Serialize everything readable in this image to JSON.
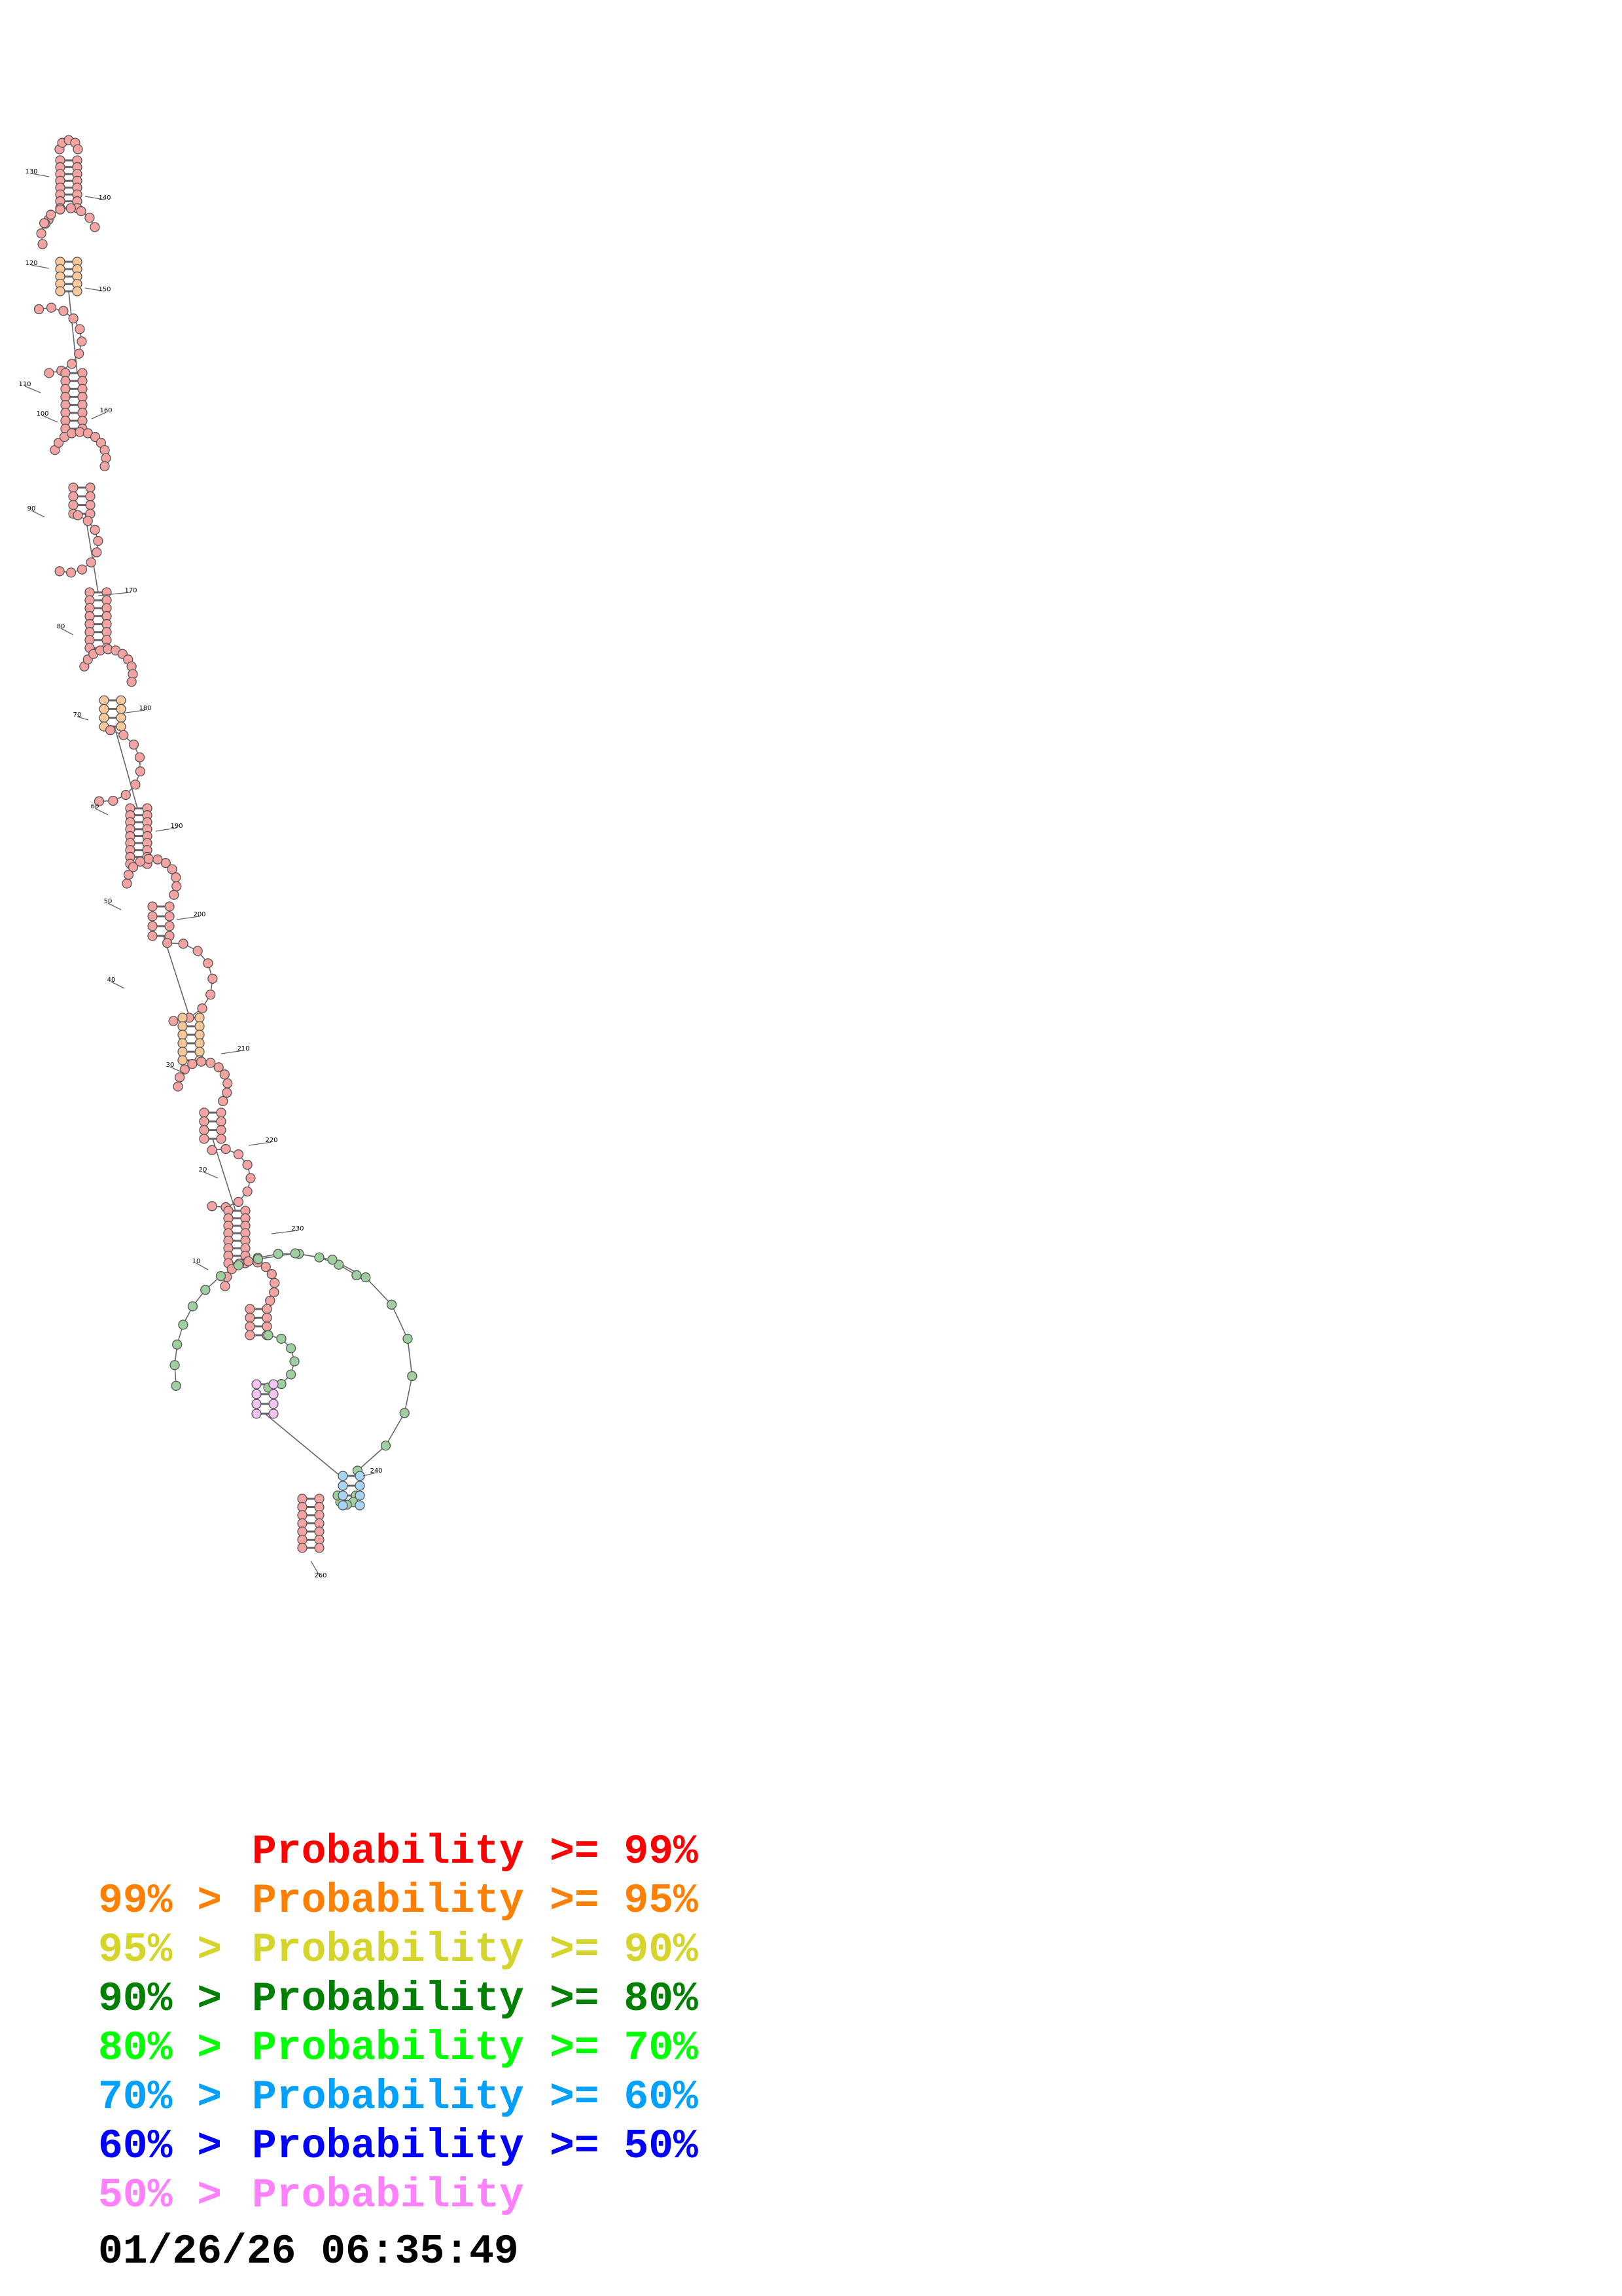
{
  "diagram": {
    "type": "rna-secondary-structure",
    "position_labels": [
      "10",
      "20",
      "30",
      "40",
      "50",
      "60",
      "70",
      "80",
      "90",
      "100",
      "110",
      "120",
      "130",
      "140",
      "150",
      "160",
      "170",
      "180",
      "190",
      "200",
      "210",
      "220",
      "230",
      "240",
      "260"
    ]
  },
  "legend": {
    "rows": [
      {
        "left": "",
        "label": "Probability",
        "right": ">= 99%",
        "color": "#ff0000"
      },
      {
        "left": "99% >",
        "label": "Probability",
        "right": ">= 95%",
        "color": "#ff8000"
      },
      {
        "left": "95% >",
        "label": "Probability",
        "right": ">= 90%",
        "color": "#d4d42a"
      },
      {
        "left": "90% >",
        "label": "Probability",
        "right": ">= 80%",
        "color": "#008000"
      },
      {
        "left": "80% >",
        "label": "Probability",
        "right": ">= 70%",
        "color": "#00ff00"
      },
      {
        "left": "70% >",
        "label": "Probability",
        "right": ">= 60%",
        "color": "#00a0ff"
      },
      {
        "left": "60% >",
        "label": "Probability",
        "right": ">= 50%",
        "color": "#0000ff"
      },
      {
        "left": "50% >",
        "label": "Probability",
        "right": "",
        "color": "#ff80ff"
      }
    ]
  },
  "timestamp": "01/26/26 06:35:49",
  "base_colors": {
    "p99": "#f4a3a3",
    "p95": "#f8c89b",
    "p90": "#e8e49c",
    "p80": "#9fcf9f",
    "p70": "#b8f0a8",
    "p60": "#a8d4f4",
    "p50": "#a8a8f4",
    "p0": "#f4c4f4"
  }
}
